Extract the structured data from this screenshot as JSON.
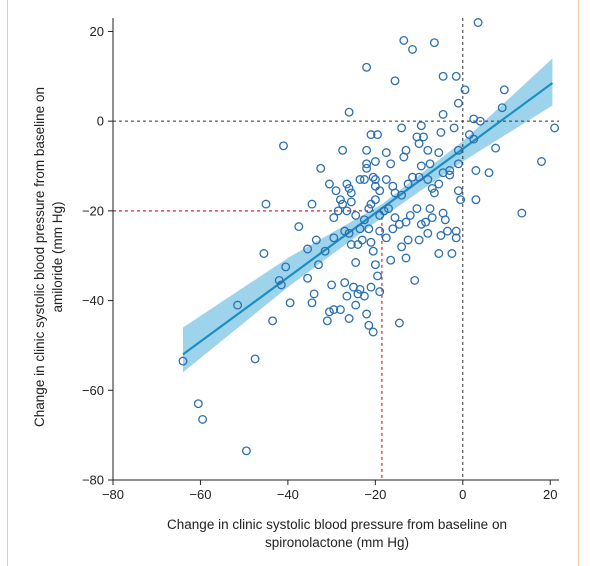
{
  "chart_data": {
    "type": "scatter",
    "xlabel_lines": [
      "Change in clinic systolic blood pressure from baseline on",
      "spironolactone (mm Hg)"
    ],
    "ylabel_lines": [
      "Change in clinic systolic blood pressure from baseline on",
      "amiloride (mm Hg)"
    ],
    "xlim": [
      -80,
      22
    ],
    "ylim": [
      -80,
      23
    ],
    "xticks": [
      -80,
      -60,
      -40,
      -20,
      0,
      20
    ],
    "xtick_labels": [
      "−80",
      "−60",
      "−40",
      "−20",
      "0",
      "20"
    ],
    "yticks": [
      20,
      0,
      -20,
      -40,
      -60,
      -80
    ],
    "ytick_labels": [
      "20",
      "0",
      "−20",
      "−40",
      "−60",
      "−80"
    ],
    "grid": false,
    "reference_lines": {
      "vertical_zero": 0,
      "horizontal_zero": 0,
      "red_marker": {
        "x": -18.5,
        "y": -20
      }
    },
    "regression": {
      "x_start": -64,
      "y_start": -52,
      "x_end": 20.5,
      "y_end": 8.5
    },
    "confidence_band": {
      "x": [
        -64,
        -40,
        -18.5,
        0,
        20.5
      ],
      "lower": [
        -56,
        -37,
        -21.5,
        -9,
        3.5
      ],
      "upper": [
        -46,
        -30.5,
        -18.5,
        -4.5,
        14
      ]
    },
    "colors": {
      "line": "#1a8fc4",
      "band": "#8ccde8",
      "points": "#2b6fb0",
      "ref_dark": "#333333",
      "ref_red": "#d8262a"
    },
    "points": [
      [
        3.5,
        22
      ],
      [
        -13.5,
        18
      ],
      [
        -11.5,
        16
      ],
      [
        -6.5,
        17.5
      ],
      [
        -22,
        12
      ],
      [
        -15.5,
        9
      ],
      [
        -4.5,
        10
      ],
      [
        -1.5,
        10
      ],
      [
        0.5,
        7
      ],
      [
        9.5,
        7
      ],
      [
        -1,
        4
      ],
      [
        -4.5,
        1.5
      ],
      [
        2.5,
        0.5
      ],
      [
        9,
        3
      ],
      [
        -26,
        2
      ],
      [
        -21,
        -3
      ],
      [
        -19.5,
        -3
      ],
      [
        -14,
        -1.5
      ],
      [
        -9.5,
        -1
      ],
      [
        4,
        0
      ],
      [
        -5,
        -2.5
      ],
      [
        -2,
        -1.5
      ],
      [
        -1,
        -6.5
      ],
      [
        2.5,
        -4
      ],
      [
        1.5,
        -3
      ],
      [
        21,
        -1.5
      ],
      [
        -41,
        -5.5
      ],
      [
        -27.5,
        -6.5
      ],
      [
        -22,
        -6.5
      ],
      [
        -22,
        -9.5
      ],
      [
        -20,
        -9
      ],
      [
        -17.5,
        -7
      ],
      [
        -16.5,
        -9.5
      ],
      [
        -13.5,
        -8
      ],
      [
        -13,
        -6.5
      ],
      [
        -10.5,
        -3.5
      ],
      [
        -10,
        -5
      ],
      [
        -9,
        -3.5
      ],
      [
        -8,
        -6.5
      ],
      [
        -7.5,
        -9.5
      ],
      [
        -5.5,
        -7
      ],
      [
        -3,
        -11
      ],
      [
        -1,
        -9.5
      ],
      [
        3,
        -11
      ],
      [
        6,
        -11.5
      ],
      [
        7.5,
        -6
      ],
      [
        18,
        -9
      ],
      [
        -32.5,
        -10.5
      ],
      [
        -30.5,
        -14
      ],
      [
        -29,
        -15.5
      ],
      [
        -28,
        -17.5
      ],
      [
        -26.5,
        -14
      ],
      [
        -26,
        -15
      ],
      [
        -25.5,
        -16
      ],
      [
        -23.5,
        -13
      ],
      [
        -22.5,
        -13
      ],
      [
        -22,
        -10.5
      ],
      [
        -20.5,
        -12.5
      ],
      [
        -20,
        -13
      ],
      [
        -20,
        -14.5
      ],
      [
        -19,
        -15.5
      ],
      [
        -17.5,
        -13
      ],
      [
        -16,
        -14.5
      ],
      [
        -15.5,
        -16
      ],
      [
        -14,
        -16.5
      ],
      [
        -12.5,
        -14
      ],
      [
        -11.5,
        -12.5
      ],
      [
        -10,
        -12.5
      ],
      [
        -9.5,
        -10
      ],
      [
        -8,
        -13
      ],
      [
        -7,
        -15
      ],
      [
        -6.5,
        -16
      ],
      [
        -5.5,
        -14
      ],
      [
        -4.5,
        -11.5
      ],
      [
        -3,
        -12
      ],
      [
        -1,
        -15.5
      ],
      [
        -0.5,
        -17.5
      ],
      [
        3,
        -17.5
      ],
      [
        13.5,
        -20.5
      ],
      [
        -45,
        -18.5
      ],
      [
        -34.5,
        -18.5
      ],
      [
        -29.5,
        -21.5
      ],
      [
        -28.5,
        -20
      ],
      [
        -27.5,
        -18.5
      ],
      [
        -26.5,
        -20
      ],
      [
        -25.5,
        -18
      ],
      [
        -24.5,
        -21
      ],
      [
        -23.5,
        -24
      ],
      [
        -22.5,
        -22
      ],
      [
        -21.5,
        -19.5
      ],
      [
        -21,
        -18.5
      ],
      [
        -20,
        -17.5
      ],
      [
        -19,
        -21
      ],
      [
        -18,
        -20
      ],
      [
        -17,
        -19.5
      ],
      [
        -15.5,
        -21.5
      ],
      [
        -14.5,
        -23
      ],
      [
        -13,
        -22.5
      ],
      [
        -12,
        -21
      ],
      [
        -10.5,
        -19.5
      ],
      [
        -9.5,
        -23
      ],
      [
        -8.5,
        -22.5
      ],
      [
        -7.5,
        -19.5
      ],
      [
        -7,
        -21.5
      ],
      [
        -4.5,
        -20.5
      ],
      [
        -4,
        -22
      ],
      [
        -3.5,
        -24.5
      ],
      [
        -1.5,
        -24.5
      ],
      [
        -1.5,
        -26
      ],
      [
        -37.5,
        -23.5
      ],
      [
        -33.5,
        -26.5
      ],
      [
        -31.5,
        -29
      ],
      [
        -29.5,
        -26
      ],
      [
        -27,
        -24.5
      ],
      [
        -26,
        -25
      ],
      [
        -25.5,
        -27.5
      ],
      [
        -24,
        -27.5
      ],
      [
        -23,
        -26.5
      ],
      [
        -21.5,
        -24
      ],
      [
        -21,
        -27
      ],
      [
        -20.5,
        -29
      ],
      [
        -19,
        -24.5
      ],
      [
        -17.5,
        -26
      ],
      [
        -16,
        -24
      ],
      [
        -14,
        -28
      ],
      [
        -12.5,
        -26.5
      ],
      [
        -10,
        -26.5
      ],
      [
        -8,
        -25
      ],
      [
        -5,
        -25.5
      ],
      [
        -5.5,
        -29.5
      ],
      [
        -2.5,
        -29.5
      ],
      [
        -45.5,
        -29.5
      ],
      [
        -35.5,
        -28.5
      ],
      [
        -33,
        -32
      ],
      [
        -24.5,
        -31.5
      ],
      [
        -20,
        -32
      ],
      [
        -16.5,
        -31
      ],
      [
        -13,
        -30.5
      ],
      [
        -11,
        -35.5
      ],
      [
        -40.5,
        -32.5
      ],
      [
        -42,
        -35.5
      ],
      [
        -41.5,
        -36.5
      ],
      [
        -35.5,
        -35
      ],
      [
        -34,
        -38.5
      ],
      [
        -30,
        -36.5
      ],
      [
        -27,
        -36
      ],
      [
        -25,
        -37
      ],
      [
        -24,
        -38.5
      ],
      [
        -23.5,
        -37.5
      ],
      [
        -22.5,
        -39
      ],
      [
        -21,
        -37
      ],
      [
        -26.5,
        -39
      ],
      [
        -24.5,
        -41
      ],
      [
        -22,
        -43
      ],
      [
        -19.5,
        -34.5
      ],
      [
        -19,
        -38
      ],
      [
        -39.5,
        -40.5
      ],
      [
        -34.5,
        -40.5
      ],
      [
        -30.5,
        -42.5
      ],
      [
        -29.5,
        -42
      ],
      [
        -28,
        -42
      ],
      [
        -31,
        -44.5
      ],
      [
        -26,
        -44
      ],
      [
        -21.5,
        -45.5
      ],
      [
        -14.5,
        -45
      ],
      [
        -43.5,
        -44.5
      ],
      [
        -20.5,
        -47
      ],
      [
        -51.5,
        -41
      ],
      [
        -47.5,
        -53
      ],
      [
        -64,
        -53.5
      ],
      [
        -60.5,
        -63
      ],
      [
        -59.5,
        -66.5
      ],
      [
        -49.5,
        -73.5
      ]
    ]
  }
}
